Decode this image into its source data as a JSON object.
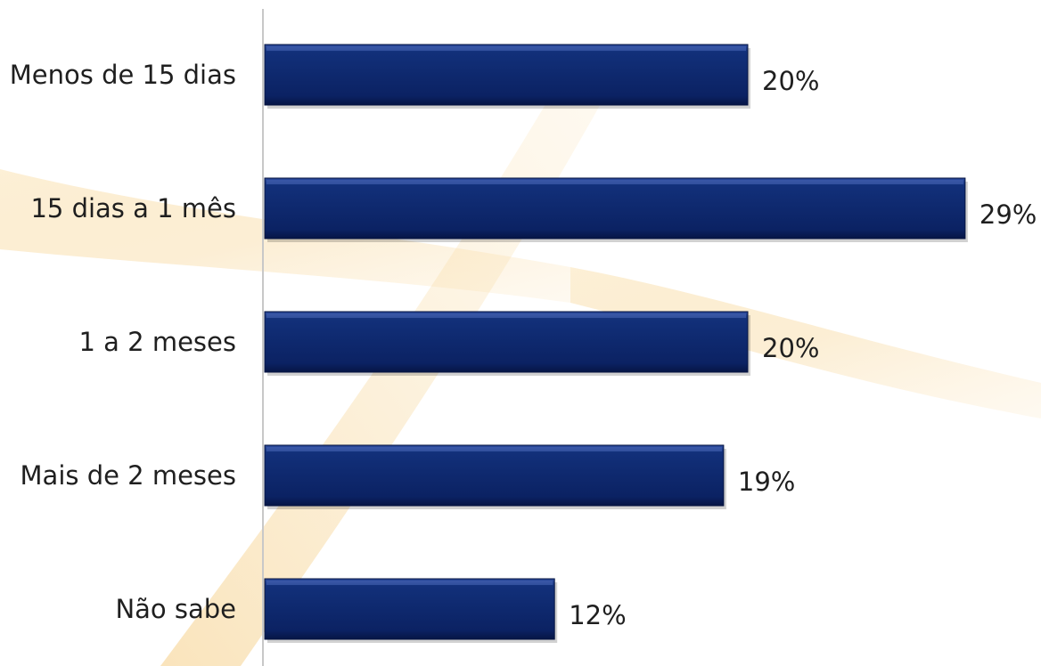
{
  "colors": {
    "bar": "#0c2466",
    "bar_highlight": "#3a58a8",
    "bar_shadow": "#061440",
    "axis": "#c8c8c8",
    "text": "#1f1f1f",
    "watermark": "#f4c46a"
  },
  "chart_data": {
    "type": "bar",
    "orientation": "horizontal",
    "categories": [
      "Menos de 15 dias",
      "15 dias a 1 mês",
      "1 a 2 meses",
      "Mais de 2 meses",
      "Não sabe"
    ],
    "values": [
      20,
      29,
      20,
      19,
      12
    ],
    "value_labels": [
      "20%",
      "29%",
      "20%",
      "19%",
      "12%"
    ],
    "unit": "%",
    "title": "",
    "xlabel": "",
    "ylabel": "",
    "xlim": [
      0,
      29
    ],
    "grid": false,
    "legend": "none"
  }
}
